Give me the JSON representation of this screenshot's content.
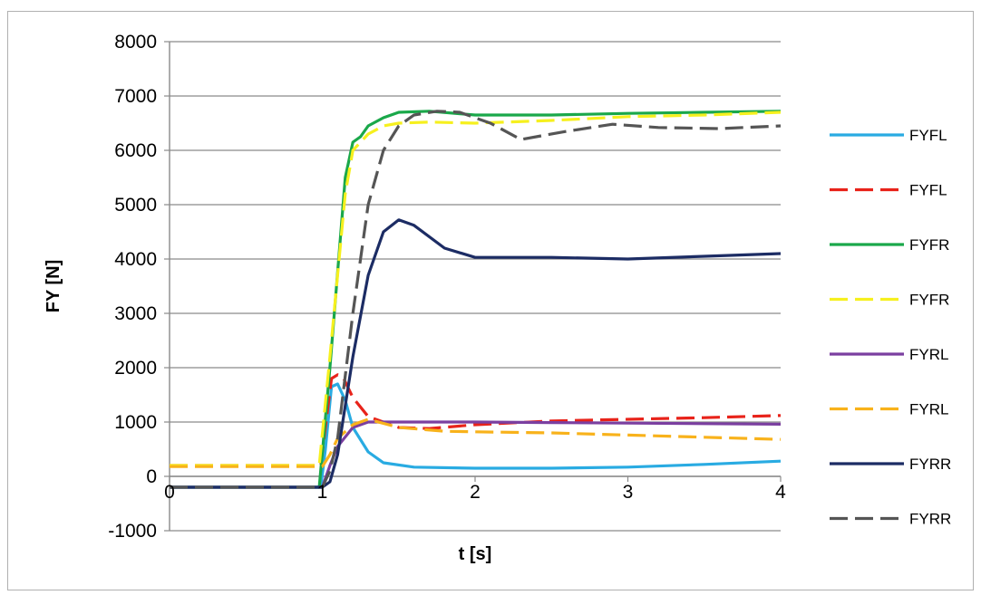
{
  "chart_data": {
    "type": "line",
    "title": "",
    "xlabel": "t [s]",
    "ylabel": "FY [N]",
    "xlim": [
      0,
      4
    ],
    "ylim": [
      -1000,
      8000
    ],
    "x_ticks": [
      0,
      1,
      2,
      3,
      4
    ],
    "y_ticks": [
      -1000,
      0,
      1000,
      2000,
      3000,
      4000,
      5000,
      6000,
      7000,
      8000
    ],
    "grid": "horizontal",
    "legend_position": "right",
    "series": [
      {
        "name": "FYFL",
        "color": "#29abe2",
        "dash": "solid",
        "x": [
          0,
          0.99,
          1.02,
          1.06,
          1.1,
          1.15,
          1.2,
          1.3,
          1.4,
          1.6,
          2.0,
          2.5,
          3.0,
          3.5,
          4.0
        ],
        "y": [
          -200,
          -200,
          500,
          1650,
          1700,
          1400,
          900,
          450,
          250,
          170,
          150,
          150,
          170,
          220,
          280
        ]
      },
      {
        "name": "FYFL",
        "color": "#e8231a",
        "dash": "dashed",
        "x": [
          0,
          0.99,
          1.02,
          1.06,
          1.1,
          1.14,
          1.2,
          1.3,
          1.5,
          1.7,
          2.0,
          2.5,
          3.0,
          3.5,
          4.0
        ],
        "y": [
          200,
          200,
          900,
          1800,
          1870,
          1800,
          1450,
          1100,
          900,
          880,
          950,
          1020,
          1050,
          1080,
          1120
        ]
      },
      {
        "name": "FYFR",
        "color": "#1aa84a",
        "dash": "solid",
        "x": [
          0,
          0.98,
          1.05,
          1.15,
          1.2,
          1.25,
          1.3,
          1.4,
          1.5,
          1.7,
          2.0,
          2.5,
          3.0,
          3.5,
          4.0
        ],
        "y": [
          -200,
          -200,
          2000,
          5500,
          6150,
          6250,
          6450,
          6600,
          6700,
          6720,
          6650,
          6650,
          6680,
          6700,
          6720
        ]
      },
      {
        "name": "FYFR",
        "color": "#f6f01e",
        "dash": "dashed",
        "x": [
          0,
          0.98,
          1.05,
          1.15,
          1.2,
          1.3,
          1.4,
          1.5,
          1.7,
          2.0,
          2.5,
          3.0,
          3.5,
          4.0
        ],
        "y": [
          200,
          200,
          2200,
          5200,
          6000,
          6300,
          6450,
          6500,
          6520,
          6500,
          6550,
          6620,
          6650,
          6700
        ]
      },
      {
        "name": "FYRL",
        "color": "#7b3fa0",
        "dash": "solid",
        "x": [
          0,
          1.0,
          1.05,
          1.1,
          1.2,
          1.3,
          1.5,
          2.0,
          2.5,
          3.0,
          3.5,
          4.0
        ],
        "y": [
          -200,
          -200,
          200,
          550,
          900,
          1000,
          1000,
          1000,
          990,
          980,
          970,
          960
        ]
      },
      {
        "name": "FYRL",
        "color": "#f8b21b",
        "dash": "dashed",
        "x": [
          0,
          1.0,
          1.05,
          1.1,
          1.2,
          1.3,
          1.5,
          1.8,
          2.0,
          2.5,
          3.0,
          3.5,
          4.0
        ],
        "y": [
          180,
          180,
          400,
          700,
          950,
          1050,
          900,
          830,
          820,
          800,
          760,
          720,
          680
        ]
      },
      {
        "name": "FYRR",
        "color": "#1c2c64",
        "dash": "solid",
        "x": [
          0,
          1.0,
          1.05,
          1.1,
          1.2,
          1.3,
          1.4,
          1.5,
          1.6,
          1.8,
          2.0,
          2.5,
          3.0,
          3.5,
          4.0
        ],
        "y": [
          -200,
          -200,
          -100,
          400,
          2200,
          3700,
          4500,
          4720,
          4620,
          4200,
          4030,
          4030,
          4000,
          4050,
          4100
        ]
      },
      {
        "name": "FYRR",
        "color": "#555555",
        "dash": "dashed",
        "x": [
          0,
          1.0,
          1.05,
          1.1,
          1.2,
          1.3,
          1.4,
          1.5,
          1.6,
          1.75,
          1.9,
          2.1,
          2.3,
          2.6,
          2.9,
          3.2,
          3.6,
          4.0
        ],
        "y": [
          -200,
          -200,
          100,
          700,
          3000,
          5000,
          6000,
          6450,
          6650,
          6720,
          6700,
          6500,
          6200,
          6350,
          6480,
          6420,
          6400,
          6450
        ]
      }
    ]
  }
}
